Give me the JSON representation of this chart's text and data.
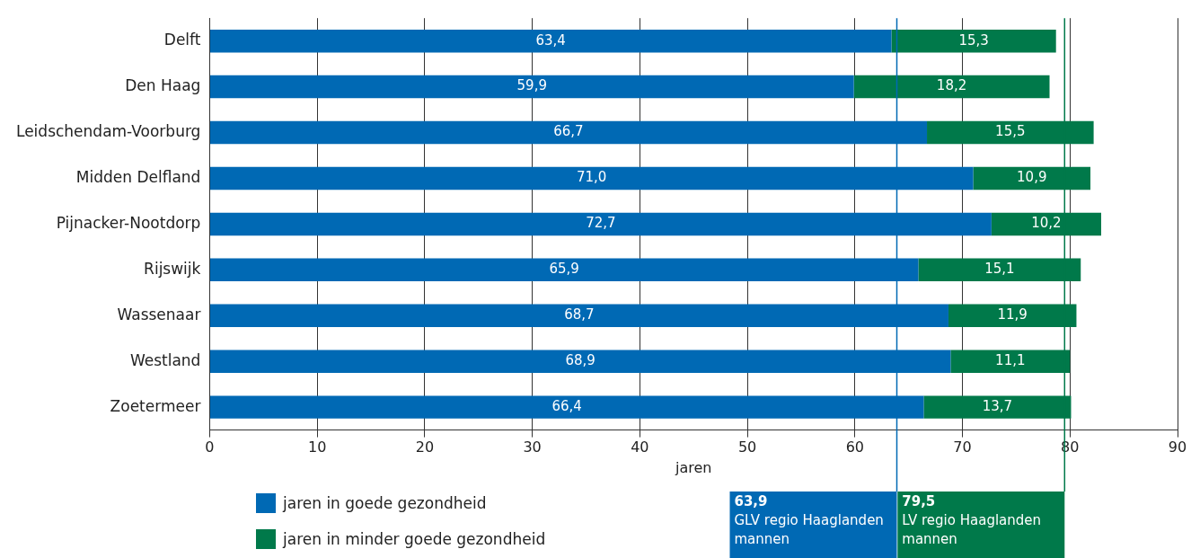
{
  "chart_data": {
    "type": "bar",
    "orientation": "horizontal",
    "stacked": true,
    "xlabel": "jaren",
    "categories": [
      "Delft",
      "Den Haag",
      "Leidschendam-Voorburg",
      "Midden Delfland",
      "Pijnacker-Nootdorp",
      "Rijswijk",
      "Wassenaar",
      "Westland",
      "Zoetermeer"
    ],
    "series": [
      {
        "name": "jaren in goede gezondheid",
        "color": "#0069b4",
        "values": [
          63.4,
          59.9,
          66.7,
          71.0,
          72.7,
          65.9,
          68.7,
          68.9,
          66.4
        ],
        "value_labels": [
          "63,4",
          "59,9",
          "66,7",
          "71,0",
          "72,7",
          "65,9",
          "68,7",
          "68,9",
          "66,4"
        ]
      },
      {
        "name": "jaren in minder goede gezondheid",
        "color": "#00794a",
        "values": [
          15.3,
          18.2,
          15.5,
          10.9,
          10.2,
          15.1,
          11.9,
          11.1,
          13.7
        ],
        "value_labels": [
          "15,3",
          "18,2",
          "15,5",
          "10,9",
          "10,2",
          "15,1",
          "11,9",
          "11,1",
          "13,7"
        ]
      }
    ],
    "xlim": [
      0,
      90
    ],
    "xticks": [
      0,
      10,
      20,
      30,
      40,
      50,
      60,
      70,
      80,
      90
    ],
    "grid": "x",
    "legend": "bottom left",
    "ref_lines": [
      {
        "axis": "x",
        "value": 63.9,
        "label": "63,9\nGLV regio Haaglanden\nmannen",
        "color": "#0069b4"
      },
      {
        "axis": "x",
        "value": 79.5,
        "label": "79,5\nLV regio Haaglanden\nmannen",
        "color": "#00794a"
      }
    ]
  }
}
